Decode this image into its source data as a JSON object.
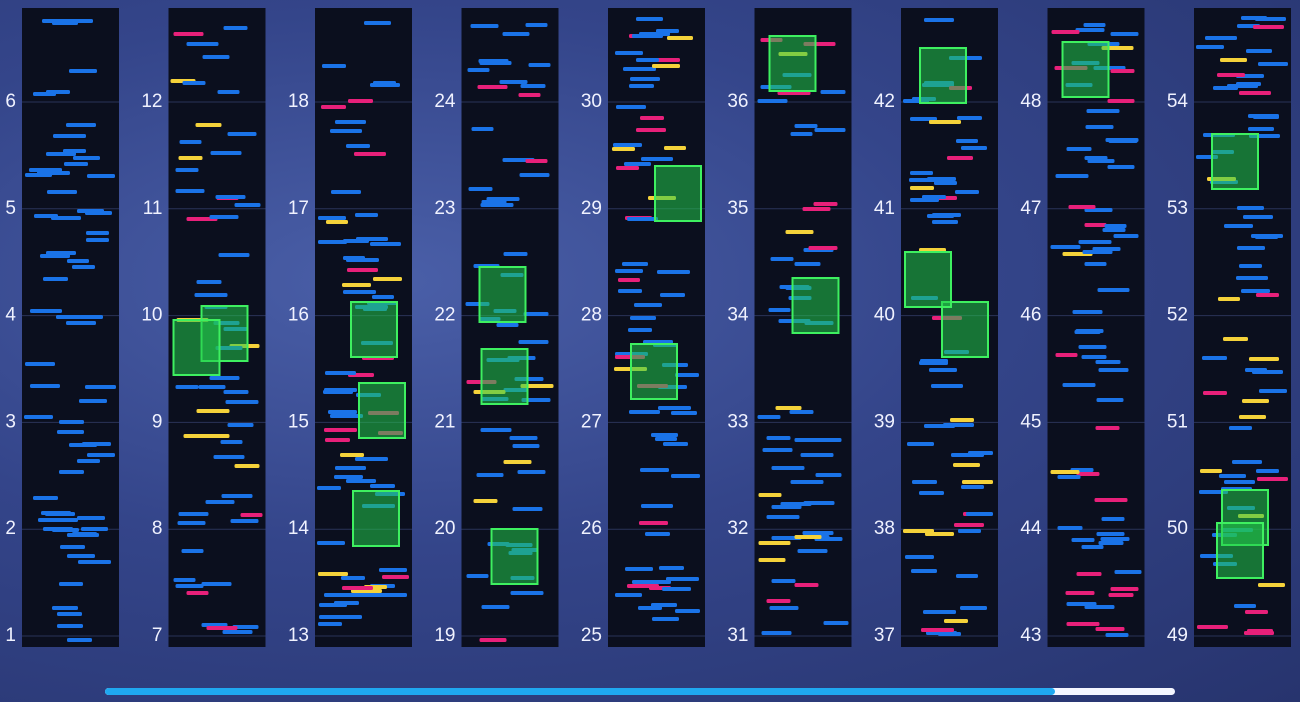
{
  "columns": [
    [
      1,
      2,
      3,
      4,
      5,
      6
    ],
    [
      7,
      8,
      9,
      10,
      11,
      12
    ],
    [
      13,
      14,
      15,
      16,
      17,
      18
    ],
    [
      19,
      20,
      21,
      22,
      23,
      24
    ],
    [
      25,
      26,
      27,
      28,
      29,
      30
    ],
    [
      31,
      32,
      33,
      34,
      35,
      36
    ],
    [
      37,
      38,
      39,
      40,
      41,
      42
    ],
    [
      43,
      44,
      45,
      46,
      47,
      48
    ],
    [
      49,
      50,
      51,
      52,
      53,
      54
    ]
  ]
}
